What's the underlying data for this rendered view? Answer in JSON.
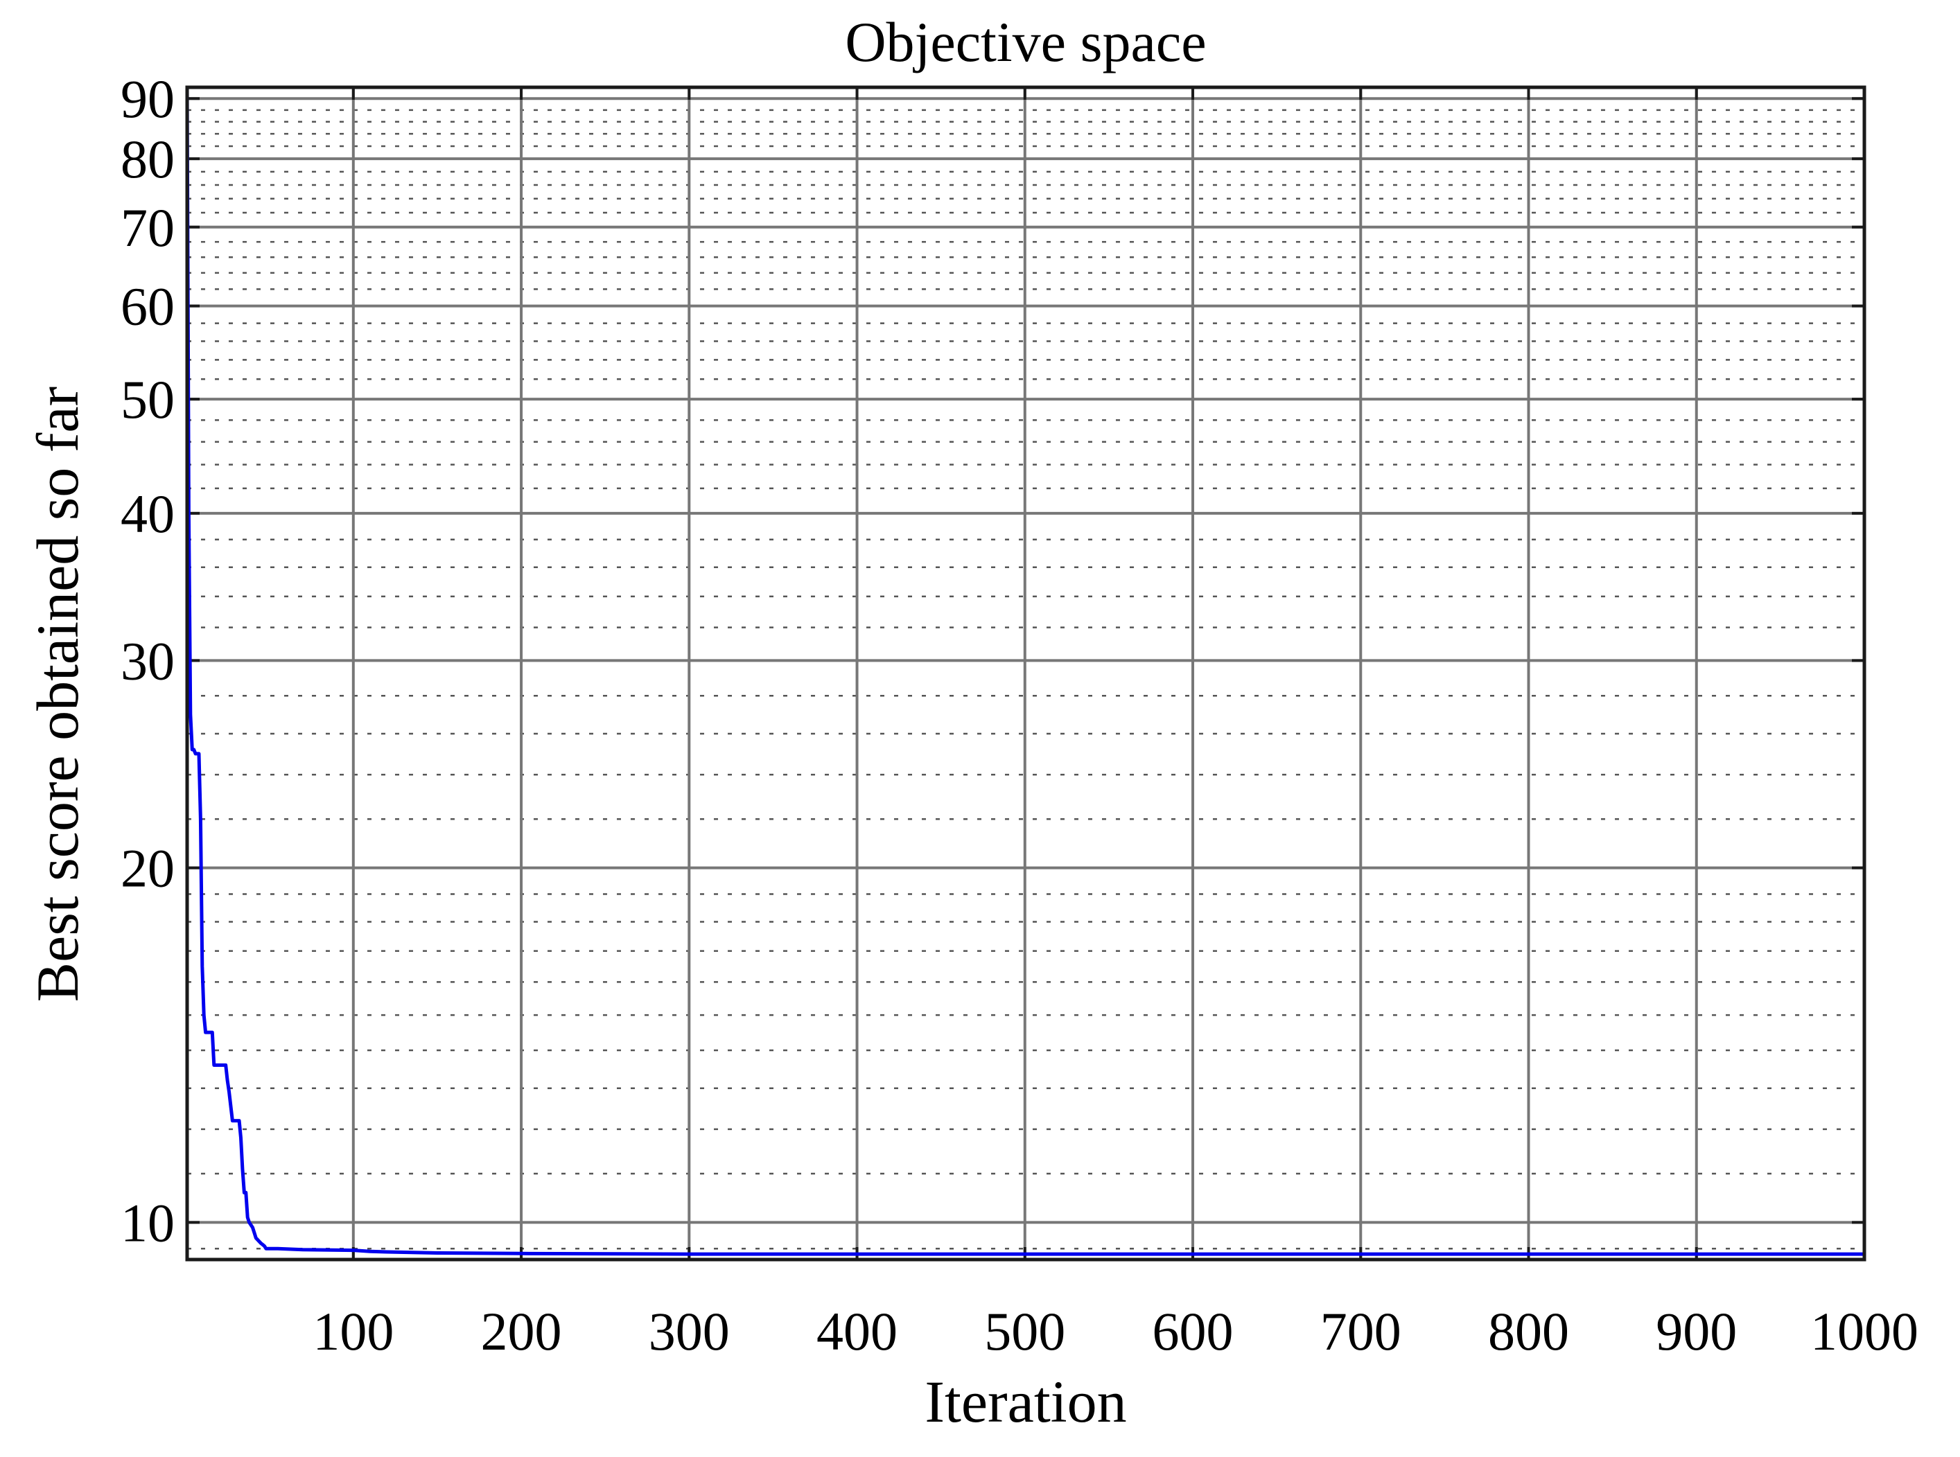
{
  "chart_data": {
    "type": "line",
    "title": "Objective space",
    "xlabel": "Iteration",
    "ylabel": "Best score obtained so far",
    "xlim": [
      1,
      1000
    ],
    "ylim": [
      9.3,
      92
    ],
    "yscale": "log",
    "grid": true,
    "minor_grid": true,
    "x_ticks": [
      100,
      200,
      300,
      400,
      500,
      600,
      700,
      800,
      900,
      1000
    ],
    "x_tick_labels": [
      "100",
      "200",
      "300",
      "400",
      "500",
      "600",
      "700",
      "800",
      "900",
      "1000"
    ],
    "y_ticks": [
      10,
      20,
      30,
      40,
      50,
      60,
      70,
      80,
      90
    ],
    "y_tick_labels": [
      "10",
      "20",
      "30",
      "40",
      "50",
      "60",
      "70",
      "80",
      "90"
    ],
    "series": [
      {
        "color": "#0000ee",
        "x": [
          1,
          2,
          3,
          4,
          5,
          6,
          7,
          8,
          9,
          10,
          11,
          12,
          13,
          16,
          17,
          19,
          20,
          24,
          25,
          26,
          28,
          29,
          30,
          32,
          33,
          34,
          35,
          36,
          37,
          38,
          40,
          41,
          42,
          45,
          47,
          48,
          50,
          55,
          70,
          100,
          110,
          120,
          150,
          200,
          300,
          500,
          1000
        ],
        "y": [
          92,
          40,
          27,
          25.2,
          25.2,
          25.0,
          25.0,
          25.0,
          22,
          16.5,
          15.0,
          14.5,
          14.5,
          14.5,
          13.6,
          13.6,
          13.6,
          13.6,
          13.2,
          12.9,
          12.2,
          12.2,
          12.2,
          12.2,
          11.8,
          11.1,
          10.6,
          10.6,
          10.1,
          10.0,
          9.9,
          9.8,
          9.7,
          9.6,
          9.55,
          9.5,
          9.5,
          9.5,
          9.48,
          9.47,
          9.45,
          9.44,
          9.42,
          9.41,
          9.4,
          9.4,
          9.4
        ]
      }
    ]
  }
}
